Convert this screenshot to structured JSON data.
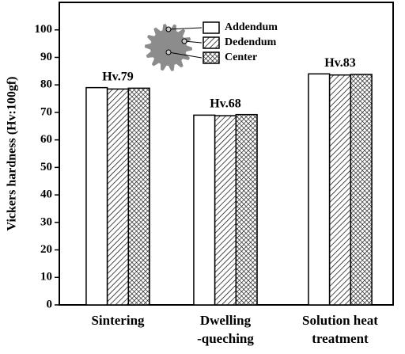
{
  "chart_data": {
    "type": "bar",
    "y_label": "Vickers hardness (Hv:100gf)",
    "categories": [
      [
        "Sintering"
      ],
      [
        "Dwelling",
        "-queching"
      ],
      [
        "Solution heat",
        "treatment"
      ]
    ],
    "series": [
      {
        "name": "Addendum",
        "color": "#ffffff",
        "pattern": "none",
        "values": [
          79,
          69,
          84
        ]
      },
      {
        "name": "Dedendum",
        "color": "#ffffff",
        "pattern": "hatch",
        "values": [
          78.5,
          68.8,
          83.6
        ]
      },
      {
        "name": "Center",
        "color": "#ffffff",
        "pattern": "crosshatch",
        "values": [
          78.8,
          69.2,
          83.8
        ]
      }
    ],
    "annotations": [
      "Hv.79",
      "Hv.68",
      "Hv.83"
    ],
    "ylim": [
      0,
      110
    ],
    "yticks": [
      0,
      10,
      20,
      30,
      40,
      50,
      60,
      70,
      80,
      90,
      100
    ]
  }
}
